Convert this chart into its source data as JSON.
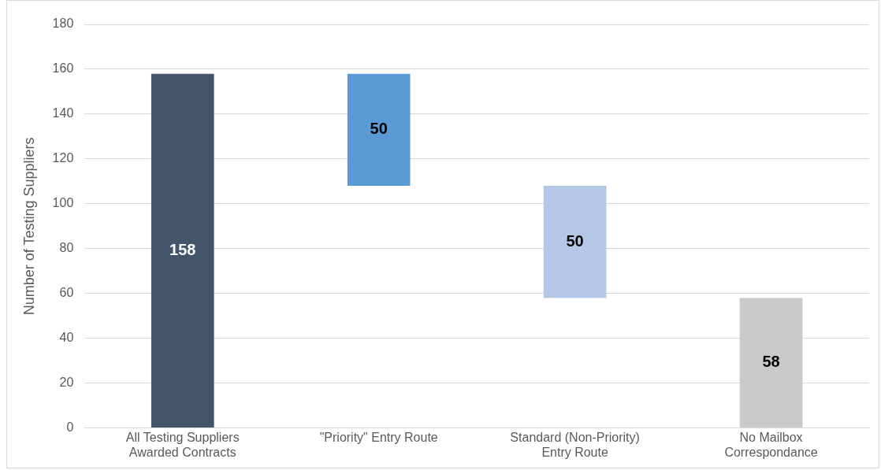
{
  "chart_data": {
    "type": "bar",
    "ylabel": "Number of Testing Suppliers",
    "categories": [
      "All Testing Suppliers Awarded Contracts",
      "\"Priority\" Entry Route",
      "Standard (Non-Priority) Entry Route",
      "No Mailbox Correspondance"
    ],
    "values": [
      158,
      50,
      50,
      58
    ],
    "base": [
      0,
      108,
      58,
      0
    ],
    "colors": [
      "#44546a",
      "#5b9bd5",
      "#b4c7e7",
      "#c9c9c9"
    ],
    "ylim": [
      0,
      180
    ],
    "yticks": [
      0,
      20,
      40,
      60,
      80,
      100,
      120,
      140,
      160,
      180
    ],
    "grid": "y",
    "data_labels": true
  }
}
